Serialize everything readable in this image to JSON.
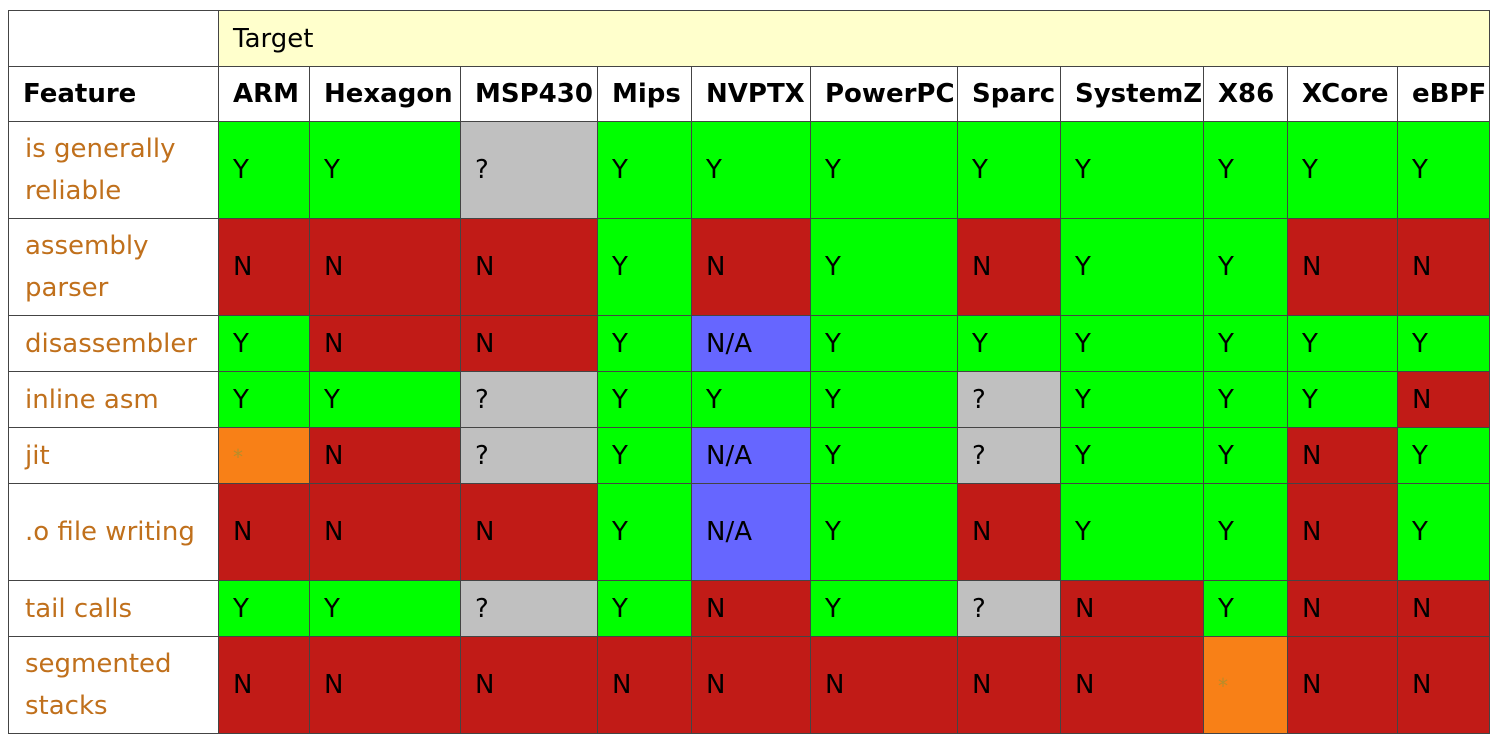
{
  "header": {
    "target_label": "Target",
    "feature_label": "Feature",
    "targets": [
      "ARM",
      "Hexagon",
      "MSP430",
      "Mips",
      "NVPTX",
      "PowerPC",
      "Sparc",
      "SystemZ",
      "X86",
      "XCore",
      "eBPF"
    ]
  },
  "rows": [
    {
      "feature": "is generally reliable",
      "values": [
        "Y",
        "Y",
        "?",
        "Y",
        "Y",
        "Y",
        "Y",
        "Y",
        "Y",
        "Y",
        "Y"
      ]
    },
    {
      "feature": "assembly parser",
      "values": [
        "N",
        "N",
        "N",
        "Y",
        "N",
        "Y",
        "N",
        "Y",
        "Y",
        "N",
        "N"
      ]
    },
    {
      "feature": "disassembler",
      "values": [
        "Y",
        "N",
        "N",
        "Y",
        "N/A",
        "Y",
        "Y",
        "Y",
        "Y",
        "Y",
        "Y"
      ]
    },
    {
      "feature": "inline asm",
      "values": [
        "Y",
        "Y",
        "?",
        "Y",
        "Y",
        "Y",
        "?",
        "Y",
        "Y",
        "Y",
        "N"
      ]
    },
    {
      "feature": "jit",
      "values": [
        "*",
        "N",
        "?",
        "Y",
        "N/A",
        "Y",
        "?",
        "Y",
        "Y",
        "N",
        "Y"
      ]
    },
    {
      "feature": ".o file writing",
      "values": [
        "N",
        "N",
        "N",
        "Y",
        "N/A",
        "Y",
        "N",
        "Y",
        "Y",
        "N",
        "Y"
      ]
    },
    {
      "feature": "tail calls",
      "values": [
        "Y",
        "Y",
        "?",
        "Y",
        "N",
        "Y",
        "?",
        "N",
        "Y",
        "N",
        "N"
      ]
    },
    {
      "feature": "segmented stacks",
      "values": [
        "N",
        "N",
        "N",
        "N",
        "N",
        "N",
        "N",
        "N",
        "*",
        "N",
        "N"
      ]
    }
  ],
  "legend_colors": {
    "Y": "#00ff00",
    "N": "#c11b17",
    "?": "#c0c0c0",
    "N/A": "#6666ff",
    "*": "#f88017"
  }
}
